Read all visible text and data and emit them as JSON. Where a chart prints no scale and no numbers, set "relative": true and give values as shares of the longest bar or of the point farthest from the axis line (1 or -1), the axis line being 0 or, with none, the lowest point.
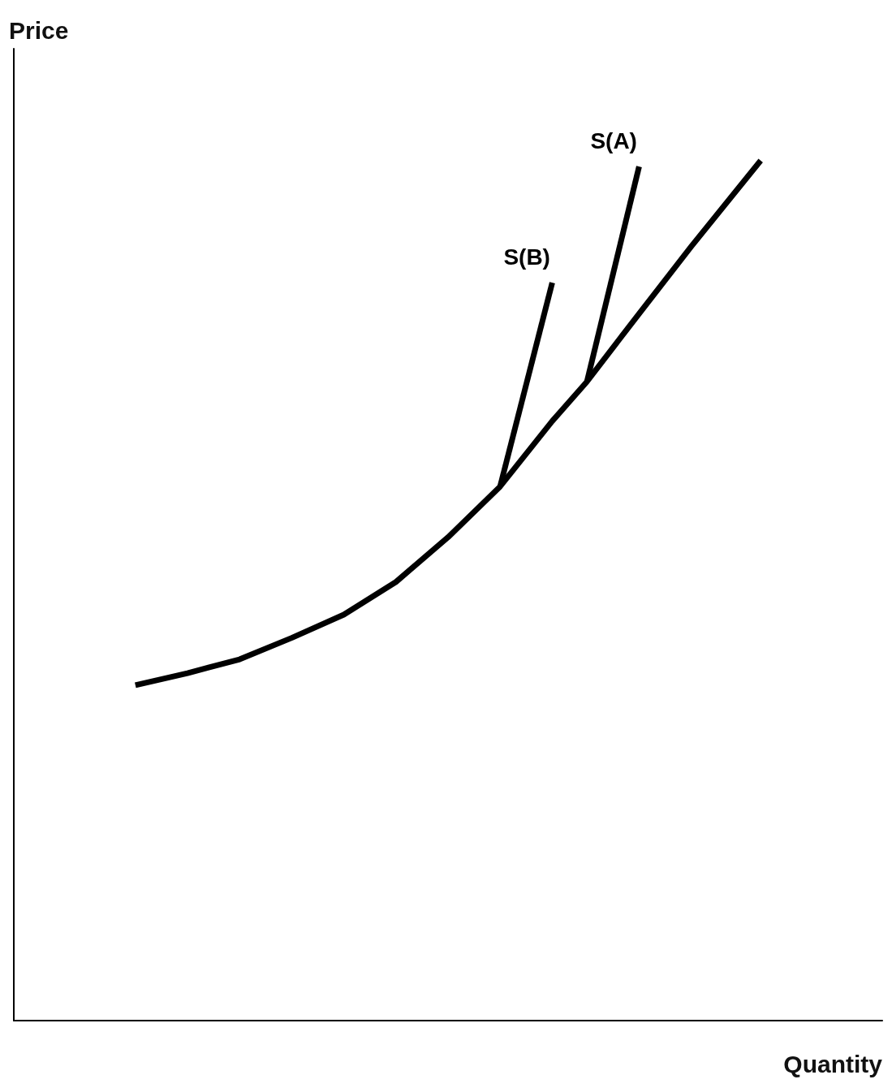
{
  "chart_data": {
    "type": "line",
    "relative": true,
    "xlabel": "Quantity",
    "ylabel": "Price",
    "grid": false,
    "legend": false,
    "marker": "none",
    "line_style": "solid",
    "categories": [
      null,
      null,
      null,
      null,
      null,
      null,
      null,
      null,
      null,
      null,
      null,
      null,
      null,
      null,
      null,
      null,
      null,
      null,
      null,
      null,
      null,
      null,
      null,
      null,
      null,
      null,
      null,
      null,
      null,
      null,
      null,
      null,
      null,
      null,
      null,
      null,
      null,
      null,
      null,
      null,
      null,
      null,
      null,
      null,
      null,
      null,
      null,
      null,
      null,
      null,
      null
    ],
    "series": [
      {
        "color": "#000000",
        "values": [
          null,
          null,
          null,
          null,
          null,
          null,
          null,
          0.39,
          null,
          null,
          0.404,
          null,
          null,
          0.42,
          null,
          null,
          0.445,
          null,
          null,
          0.472,
          null,
          null,
          0.51,
          null,
          null,
          0.562,
          null,
          null,
          0.621,
          null,
          null,
          0.697,
          null,
          0.743,
          null,
          null,
          0.822,
          null,
          null,
          0.9,
          null,
          null,
          null,
          1.0,
          null,
          null,
          null,
          null,
          null,
          null,
          null
        ]
      },
      {
        "name": "S(B)",
        "color": "#000000",
        "values": [
          null,
          null,
          null,
          null,
          null,
          null,
          null,
          null,
          null,
          null,
          null,
          null,
          null,
          null,
          null,
          null,
          null,
          null,
          null,
          null,
          null,
          null,
          null,
          null,
          null,
          null,
          null,
          null,
          0.621,
          null,
          null,
          0.858,
          null,
          null,
          null,
          null,
          null,
          null,
          null,
          null,
          null,
          null,
          null,
          null,
          null,
          null,
          null,
          null,
          null,
          null,
          null
        ]
      },
      {
        "name": "S(A)",
        "color": "#000000",
        "values": [
          null,
          null,
          null,
          null,
          null,
          null,
          null,
          null,
          null,
          null,
          null,
          null,
          null,
          null,
          null,
          null,
          null,
          null,
          null,
          null,
          null,
          null,
          null,
          null,
          null,
          null,
          null,
          null,
          null,
          null,
          null,
          null,
          null,
          0.743,
          null,
          null,
          0.993,
          null,
          null,
          null,
          null,
          null,
          null,
          null,
          null,
          null,
          null,
          null,
          null,
          null,
          null
        ]
      }
    ]
  }
}
